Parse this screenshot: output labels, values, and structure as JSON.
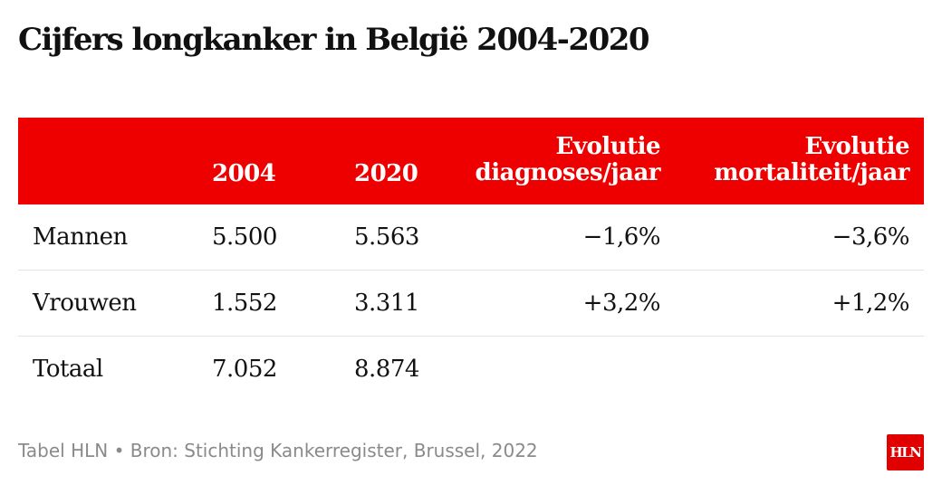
{
  "title": "Cijfers longkanker in België 2004-2020",
  "colors": {
    "header_bg": "#ee0000",
    "header_text": "#ffffff",
    "logo_bg": "#e00000"
  },
  "chart_data": {
    "type": "table",
    "title": "Cijfers longkanker in België 2004-2020",
    "columns": [
      {
        "line1": "",
        "line2": ""
      },
      {
        "line1": "",
        "line2": "2004"
      },
      {
        "line1": "",
        "line2": "2020"
      },
      {
        "line1": "Evolutie",
        "line2": "diagnoses/jaar"
      },
      {
        "line1": "Evolutie",
        "line2": "mortaliteit/jaar"
      }
    ],
    "rows": [
      {
        "label": "Mannen",
        "v2004": "5.500",
        "v2020": "5.563",
        "ev_diag": "−1,6%",
        "ev_mort": "−3,6%"
      },
      {
        "label": "Vrouwen",
        "v2004": "1.552",
        "v2020": "3.311",
        "ev_diag": "+3,2%",
        "ev_mort": "+1,2%"
      },
      {
        "label": "Totaal",
        "v2004": "7.052",
        "v2020": "8.874",
        "ev_diag": "",
        "ev_mort": ""
      }
    ]
  },
  "footer": "Tabel HLN • Bron: Stichting Kankerregister, Brussel, 2022",
  "logo_text": "HLN"
}
